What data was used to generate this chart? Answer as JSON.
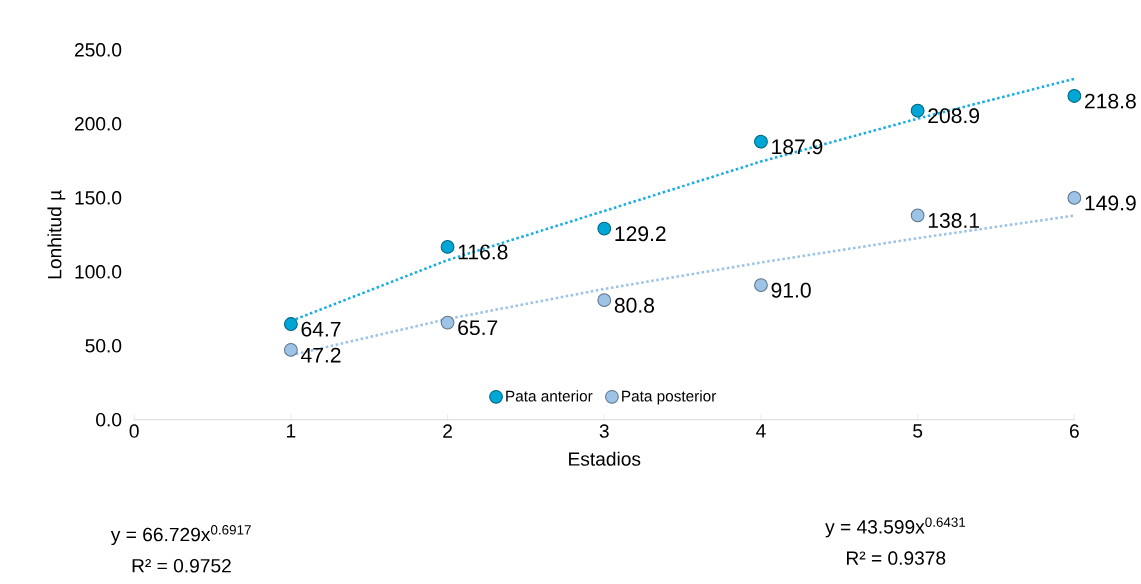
{
  "chart_data": {
    "type": "scatter",
    "xlabel": "Estadios",
    "ylabel": "Lonhitud µ",
    "xlim": [
      0,
      6
    ],
    "xticks": [
      0,
      1,
      2,
      3,
      4,
      5,
      6
    ],
    "ylim": [
      0,
      250
    ],
    "yticks": [
      {
        "value": 0,
        "label": "0.0"
      },
      {
        "value": 50,
        "label": "50.0"
      },
      {
        "value": 100,
        "label": "100.0"
      },
      {
        "value": 150,
        "label": "150.0"
      },
      {
        "value": 200,
        "label": "200.0"
      },
      {
        "value": 250,
        "label": "250.0"
      }
    ],
    "x": [
      1,
      2,
      3,
      4,
      5,
      6
    ],
    "marker": "circle",
    "grid": false,
    "legend": "bottom",
    "series": [
      {
        "name": "Pata anterior",
        "color": "#00a6d6",
        "values": [
          64.7,
          116.8,
          129.2,
          187.9,
          208.9,
          218.8
        ],
        "value_labels": [
          "64.7",
          "116.8",
          "129.2",
          "187.9",
          "208.9",
          "218.8"
        ]
      },
      {
        "name": "Pata posterior",
        "color": "#9dc3e6",
        "values": [
          47.2,
          65.7,
          80.8,
          91.0,
          138.1,
          149.9
        ],
        "value_labels": [
          "47.2",
          "65.7",
          "80.8",
          "91.0",
          "138.1",
          "149.9"
        ]
      },
      {
        "type": "line",
        "line_style": "dotted",
        "marker": "none",
        "color": "#1aaee6",
        "x": [
          1,
          2,
          3,
          4,
          5,
          6
        ],
        "values": [
          66.7,
          107.9,
          141.1,
          174.5,
          203.5,
          230.4
        ]
      },
      {
        "type": "line",
        "line_style": "dotted",
        "marker": "none",
        "color": "#9dc3e6",
        "x": [
          1,
          2,
          3,
          4,
          5,
          6
        ],
        "values": [
          43.6,
          68.1,
          88.4,
          106.3,
          122.7,
          138.0
        ]
      }
    ],
    "annotations": [
      "y = 66.729x$^{0.6917}$",
      "R² = 0.9752",
      "y = 43.599x$^{0.6431}$",
      "R² = 0.9378"
    ]
  }
}
